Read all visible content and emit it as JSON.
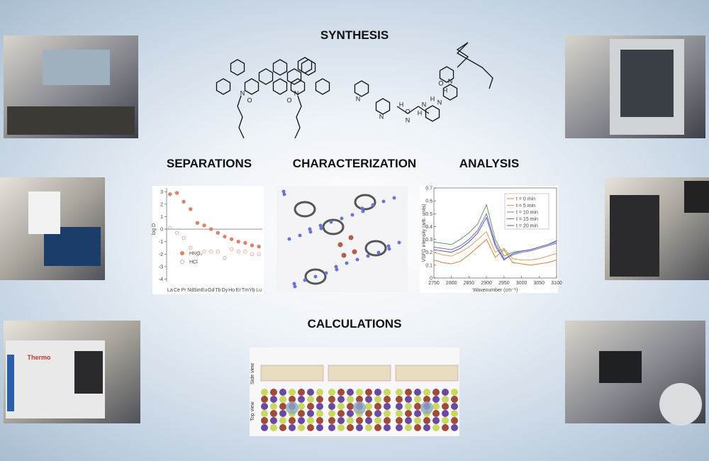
{
  "sections": {
    "synthesis": "SYNTHESIS",
    "separations": "SEPARATIONS",
    "characterization": "CHARACTERIZATION",
    "analysis": "ANALYSIS",
    "calculations": "CALCULATIONS"
  },
  "structures": {
    "ligand_1": [
      "N",
      "N",
      "O",
      "O"
    ],
    "ligand_2": [
      "N",
      "N",
      "H",
      "N",
      "H",
      "N",
      "O",
      "H",
      "N",
      "H",
      "N",
      "O"
    ]
  },
  "photos": {
    "instrument_brand": "Thermo"
  },
  "calculations": {
    "side_label": "Side view",
    "top_label": "Top view"
  },
  "charts": [
    {
      "type": "scatter",
      "ylabel": "log D",
      "categories": [
        "La",
        "Ce",
        "Pr",
        "Nd",
        "Sm",
        "Eu",
        "Gd",
        "Tb",
        "Dy",
        "Ho",
        "Er",
        "Tm",
        "Yb",
        "Lu"
      ],
      "series": [
        {
          "name": "HNO₃",
          "color": "#e0806a",
          "filled": true,
          "values": [
            2.8,
            2.9,
            2.2,
            1.6,
            0.5,
            0.3,
            0.0,
            -0.3,
            -0.6,
            -0.8,
            -1.0,
            -1.1,
            -1.3,
            -1.4
          ]
        },
        {
          "name": "HCl",
          "color": "#e8a090",
          "filled": false,
          "values": [
            0.1,
            -0.3,
            -0.7,
            -1.5,
            -2.0,
            -1.8,
            -1.8,
            -1.8,
            -2.3,
            -1.6,
            -1.8,
            -1.8,
            -2.0,
            -2.0
          ]
        }
      ],
      "ylim": [
        -4.2,
        3.3
      ],
      "yticks": [
        3,
        2,
        1,
        0,
        -1,
        -2,
        -3,
        -4
      ],
      "zero_line": true
    },
    {
      "type": "line",
      "xlabel": "Wavenumber (cm⁻¹)",
      "ylabel": "VSFG intensity (arb. units)",
      "x": [
        2750,
        2775,
        2800,
        2825,
        2850,
        2875,
        2900,
        2925,
        2950,
        2975,
        3000,
        3025,
        3050,
        3075,
        3100
      ],
      "series": [
        {
          "name": "t = 0 min",
          "color": "#e07b3c",
          "values": [
            0.14,
            0.12,
            0.11,
            0.13,
            0.18,
            0.24,
            0.3,
            0.16,
            0.22,
            0.12,
            0.11,
            0.1,
            0.11,
            0.12,
            0.14
          ]
        },
        {
          "name": "t = 5 min",
          "color": "#d6a15e",
          "values": [
            0.2,
            0.18,
            0.17,
            0.2,
            0.24,
            0.3,
            0.36,
            0.2,
            0.23,
            0.15,
            0.14,
            0.14,
            0.15,
            0.17,
            0.19
          ]
        },
        {
          "name": "t = 10 min",
          "color": "#5aa05a",
          "values": [
            0.28,
            0.27,
            0.26,
            0.3,
            0.35,
            0.42,
            0.57,
            0.3,
            0.17,
            0.2,
            0.21,
            0.22,
            0.24,
            0.26,
            0.28
          ]
        },
        {
          "name": "t = 15 min",
          "color": "#8c5fb5",
          "values": [
            0.24,
            0.23,
            0.22,
            0.25,
            0.3,
            0.37,
            0.5,
            0.27,
            0.15,
            0.18,
            0.2,
            0.21,
            0.23,
            0.25,
            0.27
          ]
        },
        {
          "name": "t = 20 min",
          "color": "#4a5fbf",
          "values": [
            0.22,
            0.21,
            0.2,
            0.23,
            0.28,
            0.35,
            0.47,
            0.25,
            0.14,
            0.19,
            0.21,
            0.22,
            0.24,
            0.26,
            0.29
          ]
        }
      ],
      "xlim": [
        2750,
        3100
      ],
      "xticks": [
        2750,
        2800,
        2850,
        2900,
        2950,
        3000,
        3050,
        3100
      ],
      "ylim": [
        0,
        0.7
      ],
      "yticks": [
        0,
        0.1,
        0.2,
        0.3,
        0.4,
        0.5,
        0.6,
        0.7
      ]
    }
  ]
}
